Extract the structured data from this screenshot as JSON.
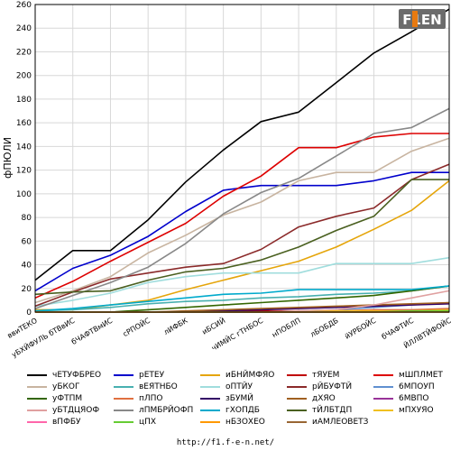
{
  "chart_data": {
    "type": "line",
    "ylabel": "фПЮЛИ",
    "ylim": [
      0,
      260
    ],
    "yticks": [
      0,
      20,
      40,
      60,
      80,
      100,
      120,
      140,
      160,
      180,
      200,
      220,
      240,
      260
    ],
    "grid": true,
    "legend_position": "bottom",
    "categories": [
      "ввиТЕКО",
      "уБХЙФУЛЬ бТВвИС",
      "бЧАФТВмИС",
      "сРПОЙС",
      "лИФБК",
      "иБСИЙ",
      "чИМЙС гТНБОС",
      "нПОБЛП",
      "лБОБДБ",
      "йУРБОЙС",
      "бЧАФТИС",
      "ЙЛЛВТЙФОЙС"
    ],
    "series": [
      {
        "name": "чЕТУФБРЕО",
        "color": "#000000",
        "values": [
          27,
          52,
          52,
          78,
          110,
          137,
          161,
          169,
          194,
          219,
          237,
          256
        ]
      },
      {
        "name": "рЕТЕУ",
        "color": "#0000cc",
        "values": [
          18,
          37,
          48,
          64,
          85,
          103,
          107,
          107,
          107,
          111,
          118,
          118
        ]
      },
      {
        "name": "иБНЙМФЯО",
        "color": "#e5a50a",
        "values": [
          2,
          2,
          6,
          10,
          19,
          27,
          35,
          43,
          55,
          70,
          86,
          111
        ]
      },
      {
        "name": "тЯУЕМ",
        "color": "#c00000",
        "values": [
          0,
          0,
          0,
          0,
          0,
          0,
          1,
          1,
          1,
          1,
          1,
          1
        ]
      },
      {
        "name": "мШПЛМЕТ",
        "color": "#dd0000",
        "values": [
          12,
          26,
          43,
          59,
          75,
          98,
          115,
          139,
          139,
          148,
          151,
          151
        ]
      },
      {
        "name": "уБКОГ",
        "color": "#c8b4a0",
        "values": [
          8,
          18,
          30,
          50,
          65,
          82,
          93,
          111,
          118,
          118,
          136,
          147
        ]
      },
      {
        "name": "вЕЯТНБО",
        "color": "#48b0b0",
        "values": [
          1,
          2,
          4,
          7,
          9,
          10,
          12,
          13,
          15,
          16,
          18,
          22
        ]
      },
      {
        "name": "оПТЙУ",
        "color": "#a0dddd",
        "values": [
          5,
          10,
          16,
          25,
          30,
          33,
          33,
          33,
          41,
          41,
          41,
          46
        ]
      },
      {
        "name": "рЙБУФТЙ",
        "color": "#8b2a2a",
        "values": [
          5,
          17,
          28,
          33,
          38,
          41,
          53,
          72,
          81,
          88,
          112,
          125
        ]
      },
      {
        "name": "6МПОУП",
        "color": "#6090d0",
        "values": [
          0,
          0,
          0,
          0,
          0,
          0,
          0,
          1,
          2,
          4,
          6,
          8
        ]
      },
      {
        "name": "уФТПМ",
        "color": "#336600",
        "values": [
          0,
          0,
          0,
          2,
          4,
          6,
          8,
          10,
          12,
          14,
          18,
          22
        ]
      },
      {
        "name": "пЛПО",
        "color": "#e07040",
        "values": [
          0,
          0,
          0,
          0,
          0,
          0,
          0,
          1,
          1,
          2,
          2,
          3
        ]
      },
      {
        "name": "зБУМЙ",
        "color": "#330066",
        "values": [
          0,
          0,
          0,
          0,
          0,
          1,
          2,
          3,
          4,
          5,
          6,
          7
        ]
      },
      {
        "name": "дХЯО",
        "color": "#a06020",
        "values": [
          0,
          0,
          0,
          0,
          1,
          2,
          3,
          4,
          5,
          6,
          7,
          8
        ]
      },
      {
        "name": "6МВПО",
        "color": "#993399",
        "values": [
          0,
          0,
          0,
          0,
          0,
          0,
          0,
          0,
          0,
          1,
          1,
          2
        ]
      },
      {
        "name": "уБТДЦЯОФ",
        "color": "#e0a0a0",
        "values": [
          0,
          0,
          0,
          0,
          0,
          0,
          0,
          1,
          2,
          6,
          12,
          18
        ]
      },
      {
        "name": "лПМБРЙОФП",
        "color": "#888888",
        "values": [
          3,
          14,
          25,
          38,
          58,
          83,
          101,
          113,
          132,
          151,
          156,
          172
        ]
      },
      {
        "name": "гХОПДБ",
        "color": "#00aacc",
        "values": [
          1,
          3,
          6,
          9,
          12,
          15,
          16,
          19,
          19,
          19,
          19,
          22
        ]
      },
      {
        "name": "тЙЛБТДП",
        "color": "#4a6020",
        "values": [
          15,
          17,
          18,
          27,
          34,
          37,
          44,
          55,
          69,
          81,
          112,
          112
        ]
      },
      {
        "name": "мПХУЯО",
        "color": "#f0c020",
        "values": [
          0,
          0,
          0,
          0,
          0,
          0,
          0,
          0,
          1,
          1,
          1,
          2
        ]
      },
      {
        "name": "вПФБУ",
        "color": "#ff66aa",
        "values": [
          0,
          0,
          0,
          0,
          0,
          0,
          0,
          0,
          0,
          0,
          0,
          1
        ]
      },
      {
        "name": "цПХ",
        "color": "#66cc33",
        "values": [
          0,
          0,
          0,
          0,
          0,
          0,
          0,
          0,
          0,
          0,
          1,
          1
        ]
      },
      {
        "name": "нБЗОХЕО",
        "color": "#ff9900",
        "values": [
          0,
          0,
          0,
          0,
          0,
          0,
          0,
          0,
          0,
          0,
          0,
          0
        ]
      },
      {
        "name": "иАМЛЕОВЕТЗ",
        "color": "#996633",
        "values": [
          0,
          0,
          0,
          0,
          0,
          0,
          0,
          0,
          0,
          0,
          0,
          0
        ]
      }
    ]
  },
  "footer_url": "http://f1.f-e-n.net/",
  "logo_text": "F1EN"
}
